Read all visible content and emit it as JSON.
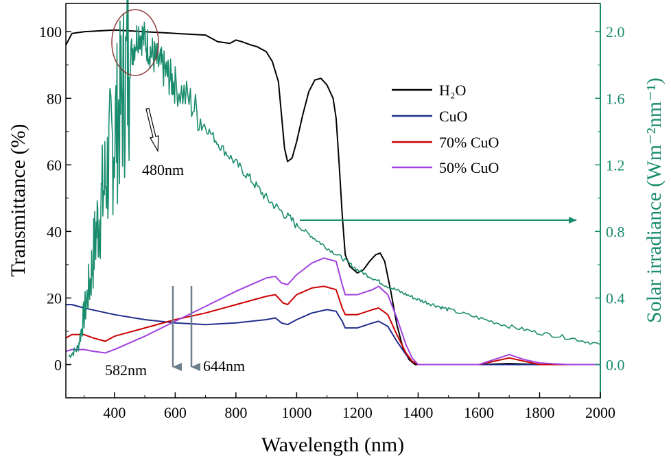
{
  "chart_data": {
    "type": "line",
    "xlabel": "Wavelength (nm)",
    "ylabel_left": "Transmittance (%)",
    "ylabel_right": "Solar irradiance (Wm⁻²nm⁻¹)",
    "xlim": [
      240,
      2000
    ],
    "ylim_left": [
      -10,
      108.5
    ],
    "ylim_right": [
      -0.2,
      2.17
    ],
    "x_ticks": [
      "400",
      "600",
      "800",
      "1000",
      "1200",
      "1400",
      "1600",
      "1800",
      "2000"
    ],
    "y_left_ticks": [
      "0",
      "20",
      "40",
      "60",
      "80",
      "100"
    ],
    "y_right_ticks": [
      "0.0",
      "0.4",
      "0.8",
      "1.2",
      "1.6",
      "2.0"
    ],
    "legend_placement": "upper-middle-right",
    "series": [
      {
        "name": "H₂O",
        "axis": "left",
        "color": "#000000",
        "points": [
          [
            240,
            96
          ],
          [
            260,
            99.5
          ],
          [
            300,
            100
          ],
          [
            400,
            100.5
          ],
          [
            500,
            100
          ],
          [
            600,
            99.5
          ],
          [
            700,
            99
          ],
          [
            740,
            97
          ],
          [
            780,
            96.5
          ],
          [
            800,
            97.5
          ],
          [
            820,
            97
          ],
          [
            850,
            96
          ],
          [
            870,
            95.5
          ],
          [
            900,
            94
          ],
          [
            920,
            91
          ],
          [
            940,
            85
          ],
          [
            950,
            75
          ],
          [
            960,
            65
          ],
          [
            970,
            61
          ],
          [
            985,
            62
          ],
          [
            1000,
            67
          ],
          [
            1020,
            75
          ],
          [
            1040,
            82
          ],
          [
            1060,
            85.5
          ],
          [
            1080,
            86
          ],
          [
            1100,
            84
          ],
          [
            1120,
            80
          ],
          [
            1130,
            74
          ],
          [
            1140,
            60
          ],
          [
            1150,
            45
          ],
          [
            1160,
            33
          ],
          [
            1175,
            29.5
          ],
          [
            1200,
            27.5
          ],
          [
            1220,
            28.5
          ],
          [
            1240,
            31
          ],
          [
            1260,
            33
          ],
          [
            1275,
            33.5
          ],
          [
            1290,
            31
          ],
          [
            1310,
            22
          ],
          [
            1330,
            12
          ],
          [
            1350,
            5
          ],
          [
            1370,
            1.5
          ],
          [
            1390,
            0
          ],
          [
            1500,
            0
          ],
          [
            1600,
            0
          ],
          [
            1700,
            0.3
          ],
          [
            1800,
            0
          ],
          [
            2000,
            0
          ]
        ]
      },
      {
        "name": "CuO",
        "axis": "left",
        "color": "#1f2d8c",
        "points": [
          [
            240,
            18
          ],
          [
            260,
            18
          ],
          [
            300,
            17
          ],
          [
            400,
            15
          ],
          [
            500,
            13.5
          ],
          [
            600,
            12.5
          ],
          [
            700,
            12
          ],
          [
            800,
            12.5
          ],
          [
            900,
            13.5
          ],
          [
            930,
            14
          ],
          [
            950,
            12.5
          ],
          [
            970,
            12
          ],
          [
            1000,
            13.5
          ],
          [
            1050,
            15.5
          ],
          [
            1100,
            16.5
          ],
          [
            1130,
            16
          ],
          [
            1150,
            13
          ],
          [
            1160,
            11
          ],
          [
            1200,
            11
          ],
          [
            1250,
            12.5
          ],
          [
            1270,
            13
          ],
          [
            1300,
            11.5
          ],
          [
            1330,
            7
          ],
          [
            1360,
            3
          ],
          [
            1380,
            1
          ],
          [
            1400,
            0
          ],
          [
            2000,
            0
          ]
        ]
      },
      {
        "name": "70% CuO",
        "axis": "left",
        "color": "#cc0000",
        "points": [
          [
            240,
            8
          ],
          [
            260,
            9
          ],
          [
            300,
            9
          ],
          [
            330,
            8
          ],
          [
            370,
            7
          ],
          [
            400,
            8.5
          ],
          [
            500,
            11
          ],
          [
            600,
            13.5
          ],
          [
            700,
            15.5
          ],
          [
            800,
            18
          ],
          [
            900,
            20.5
          ],
          [
            930,
            21
          ],
          [
            955,
            18.5
          ],
          [
            970,
            18
          ],
          [
            1000,
            21
          ],
          [
            1050,
            23
          ],
          [
            1090,
            23.5
          ],
          [
            1130,
            22.5
          ],
          [
            1150,
            17
          ],
          [
            1160,
            15
          ],
          [
            1200,
            15
          ],
          [
            1250,
            16.5
          ],
          [
            1270,
            17
          ],
          [
            1300,
            15
          ],
          [
            1330,
            9
          ],
          [
            1360,
            3.5
          ],
          [
            1380,
            1
          ],
          [
            1400,
            0
          ],
          [
            1600,
            0
          ],
          [
            1650,
            1
          ],
          [
            1700,
            2
          ],
          [
            1750,
            1
          ],
          [
            1800,
            0
          ],
          [
            2000,
            0
          ]
        ]
      },
      {
        "name": "50% CuO",
        "axis": "left",
        "color": "#a040e0",
        "points": [
          [
            240,
            4
          ],
          [
            260,
            4.5
          ],
          [
            300,
            4.5
          ],
          [
            330,
            4
          ],
          [
            370,
            3.5
          ],
          [
            400,
            4.5
          ],
          [
            500,
            8.5
          ],
          [
            600,
            13
          ],
          [
            700,
            17.5
          ],
          [
            800,
            22
          ],
          [
            900,
            26
          ],
          [
            930,
            26.5
          ],
          [
            950,
            24.5
          ],
          [
            970,
            24
          ],
          [
            1000,
            27
          ],
          [
            1050,
            30.5
          ],
          [
            1090,
            32
          ],
          [
            1130,
            31
          ],
          [
            1150,
            24
          ],
          [
            1160,
            21
          ],
          [
            1200,
            21
          ],
          [
            1250,
            22.5
          ],
          [
            1270,
            23.5
          ],
          [
            1300,
            21
          ],
          [
            1330,
            14
          ],
          [
            1360,
            6
          ],
          [
            1380,
            2
          ],
          [
            1400,
            0
          ],
          [
            1600,
            0
          ],
          [
            1650,
            1.5
          ],
          [
            1700,
            3
          ],
          [
            1750,
            1.5
          ],
          [
            1800,
            0.5
          ],
          [
            1850,
            0.2
          ],
          [
            1900,
            0
          ],
          [
            2000,
            0
          ]
        ]
      },
      {
        "name": "",
        "axis": "right",
        "color": "#1a8c6e",
        "points": [
          [
            250,
            0.05
          ],
          [
            280,
            0.1
          ],
          [
            300,
            0.3
          ],
          [
            320,
            0.5
          ],
          [
            340,
            0.8
          ],
          [
            360,
            1.0
          ],
          [
            380,
            1.2
          ],
          [
            400,
            1.4
          ],
          [
            420,
            1.55
          ],
          [
            440,
            1.75
          ],
          [
            460,
            1.9
          ],
          [
            480,
            2.0
          ],
          [
            500,
            1.95
          ],
          [
            520,
            1.88
          ],
          [
            540,
            1.82
          ],
          [
            560,
            1.78
          ],
          [
            580,
            1.73
          ],
          [
            600,
            1.68
          ],
          [
            650,
            1.58
          ],
          [
            700,
            1.43
          ],
          [
            750,
            1.31
          ],
          [
            800,
            1.21
          ],
          [
            850,
            1.11
          ],
          [
            900,
            1.0
          ],
          [
            950,
            0.92
          ],
          [
            1000,
            0.84
          ],
          [
            1050,
            0.77
          ],
          [
            1100,
            0.7
          ],
          [
            1150,
            0.64
          ],
          [
            1200,
            0.57
          ],
          [
            1250,
            0.52
          ],
          [
            1300,
            0.47
          ],
          [
            1350,
            0.43
          ],
          [
            1400,
            0.39
          ],
          [
            1450,
            0.36
          ],
          [
            1500,
            0.33
          ],
          [
            1600,
            0.28
          ],
          [
            1700,
            0.23
          ],
          [
            1800,
            0.19
          ],
          [
            1900,
            0.16
          ],
          [
            2000,
            0.12
          ]
        ]
      }
    ],
    "annotations": [
      {
        "text": "480nm",
        "x": 520,
        "y": 59
      },
      {
        "text": "582nm",
        "x": 240,
        "y": -2
      },
      {
        "text": "644nm",
        "x": 670,
        "y": -2
      }
    ]
  }
}
